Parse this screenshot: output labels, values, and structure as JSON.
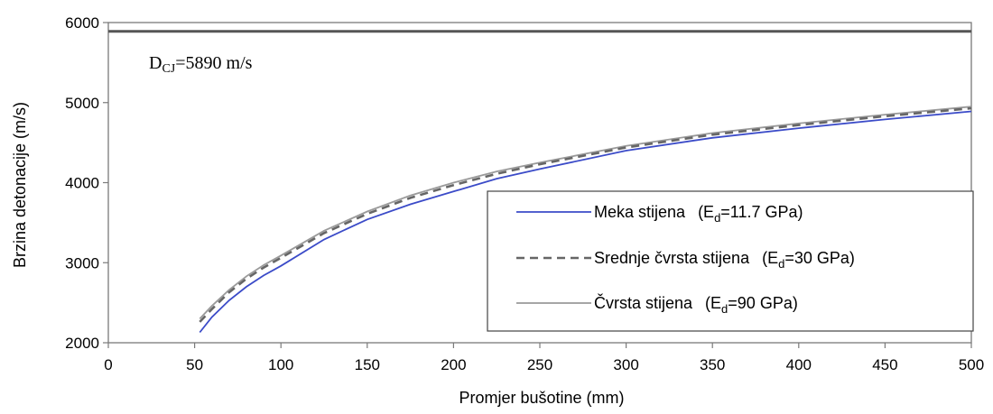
{
  "chart_data": {
    "type": "line",
    "title": "",
    "xlabel": "Promjer bušotine (mm)",
    "ylabel": "Brzina detonacije (m/s)",
    "xlim": [
      0,
      500
    ],
    "ylim": [
      2000,
      6000
    ],
    "xticks": [
      0,
      50,
      100,
      150,
      200,
      250,
      300,
      350,
      400,
      450,
      500
    ],
    "yticks": [
      2000,
      3000,
      4000,
      5000,
      6000
    ],
    "grid": false,
    "legend_position": "inside lower-right",
    "annotation": {
      "main": "D",
      "sub": "CJ",
      "rest": "=5890 m/s",
      "value": 5890
    },
    "series": [
      {
        "name": "Meka stijena",
        "param_pre": "(E",
        "param_sub": "d",
        "param_post": "=11.7 GPa)",
        "color": "#3b4bc8",
        "dash": "solid",
        "x": [
          53,
          60,
          70,
          80,
          90,
          100,
          125,
          150,
          175,
          200,
          225,
          250,
          300,
          350,
          400,
          450,
          500
        ],
        "y": [
          2130,
          2320,
          2530,
          2700,
          2840,
          2960,
          3290,
          3540,
          3730,
          3890,
          4050,
          4170,
          4400,
          4560,
          4680,
          4790,
          4890
        ]
      },
      {
        "name": "Srednje čvrsta stijena",
        "param_pre": "(E",
        "param_sub": "d",
        "param_post": "=30 GPa)",
        "color": "#666666",
        "dash": "dashed",
        "x": [
          53,
          60,
          70,
          80,
          90,
          100,
          125,
          150,
          175,
          200,
          225,
          250,
          300,
          350,
          400,
          450,
          500
        ],
        "y": [
          2260,
          2420,
          2630,
          2800,
          2940,
          3060,
          3370,
          3610,
          3810,
          3970,
          4110,
          4230,
          4440,
          4600,
          4720,
          4830,
          4930
        ]
      },
      {
        "name": "Čvrsta stijena",
        "param_pre": "(E",
        "param_sub": "d",
        "param_post": "=90 GPa)",
        "color": "#9a9a9a",
        "dash": "solid",
        "x": [
          53,
          60,
          70,
          80,
          90,
          100,
          125,
          150,
          175,
          200,
          225,
          250,
          300,
          350,
          400,
          450,
          500
        ],
        "y": [
          2300,
          2460,
          2660,
          2830,
          2970,
          3090,
          3400,
          3640,
          3840,
          4000,
          4140,
          4250,
          4460,
          4620,
          4740,
          4850,
          4950
        ]
      }
    ]
  }
}
